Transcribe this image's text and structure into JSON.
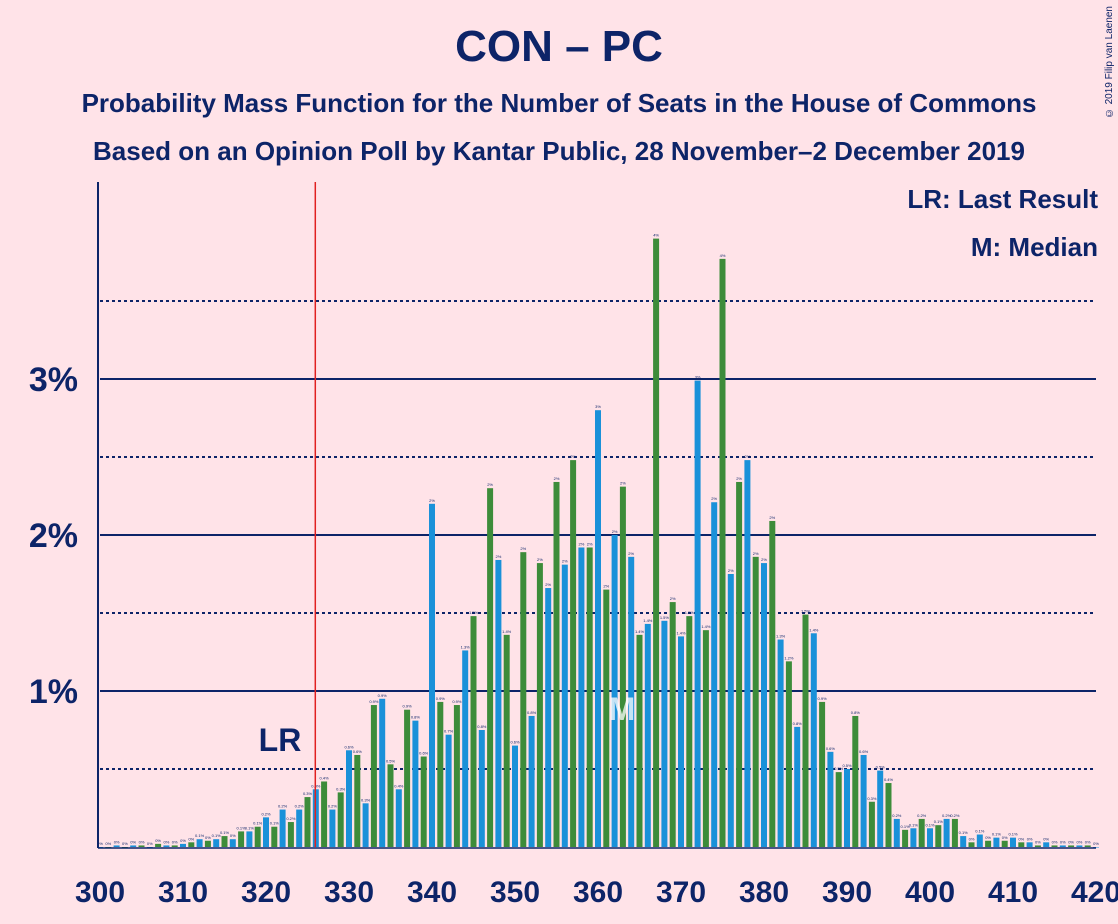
{
  "chart_data": {
    "type": "bar",
    "title": "CON – PC",
    "subtitle": "Probability Mass Function for the Number of Seats in the House of Commons",
    "subtitle2": "Based on an Opinion Poll by Kantar Public, 28 November–2 December 2019",
    "copyright": "© 2019 Filip van Laenen",
    "legend": [
      "LR: Last Result",
      "M: Median"
    ],
    "xlim": [
      300,
      420
    ],
    "ylim": [
      0,
      4.2
    ],
    "ytick_labels": [
      "1%",
      "2%",
      "3%"
    ],
    "ytick_values": [
      1,
      2,
      3
    ],
    "minor_gridlines": [
      0.5,
      1.5,
      2.5,
      3.5
    ],
    "xtick_labels": [
      "300",
      "310",
      "320",
      "330",
      "340",
      "350",
      "360",
      "370",
      "380",
      "390",
      "400",
      "410",
      "420"
    ],
    "last_result": {
      "seat": 326,
      "label": "LR"
    },
    "median": {
      "seat": 363,
      "label": "M"
    },
    "colors": {
      "even": "#1a91d9",
      "odd": "#3d8c3a",
      "line": "#e02020",
      "text": "#0d2468"
    },
    "series": [
      {
        "x": 300,
        "value": 0.0,
        "label": "0%"
      },
      {
        "x": 301,
        "value": 0.0,
        "label": "0%"
      },
      {
        "x": 302,
        "value": 0.01,
        "label": "0%"
      },
      {
        "x": 303,
        "value": 0.0,
        "label": "0%"
      },
      {
        "x": 304,
        "value": 0.01,
        "label": "0%"
      },
      {
        "x": 305,
        "value": 0.01,
        "label": "0%"
      },
      {
        "x": 306,
        "value": 0.0,
        "label": "0%"
      },
      {
        "x": 307,
        "value": 0.02,
        "label": "0%"
      },
      {
        "x": 308,
        "value": 0.01,
        "label": "0%"
      },
      {
        "x": 309,
        "value": 0.01,
        "label": "0%"
      },
      {
        "x": 310,
        "value": 0.02,
        "label": "0%"
      },
      {
        "x": 311,
        "value": 0.03,
        "label": "0%"
      },
      {
        "x": 312,
        "value": 0.05,
        "label": "0.1%"
      },
      {
        "x": 313,
        "value": 0.04,
        "label": "0%"
      },
      {
        "x": 314,
        "value": 0.05,
        "label": "0.1%"
      },
      {
        "x": 315,
        "value": 0.07,
        "label": "0.1%"
      },
      {
        "x": 316,
        "value": 0.05,
        "label": "0%"
      },
      {
        "x": 317,
        "value": 0.1,
        "label": "0.1%"
      },
      {
        "x": 318,
        "value": 0.1,
        "label": "0.1%"
      },
      {
        "x": 319,
        "value": 0.13,
        "label": "0.1%"
      },
      {
        "x": 320,
        "value": 0.19,
        "label": "0.2%"
      },
      {
        "x": 321,
        "value": 0.13,
        "label": "0.1%"
      },
      {
        "x": 322,
        "value": 0.24,
        "label": "0.2%"
      },
      {
        "x": 323,
        "value": 0.16,
        "label": "0.2%"
      },
      {
        "x": 324,
        "value": 0.24,
        "label": "0.2%"
      },
      {
        "x": 325,
        "value": 0.32,
        "label": "0.3%"
      },
      {
        "x": 326,
        "value": 0.37,
        "label": "0.4%"
      },
      {
        "x": 327,
        "value": 0.42,
        "label": "0.4%"
      },
      {
        "x": 328,
        "value": 0.24,
        "label": "0.2%"
      },
      {
        "x": 329,
        "value": 0.35,
        "label": "0.3%"
      },
      {
        "x": 330,
        "value": 0.62,
        "label": "0.6%"
      },
      {
        "x": 331,
        "value": 0.59,
        "label": "0.6%"
      },
      {
        "x": 332,
        "value": 0.28,
        "label": "0.3%"
      },
      {
        "x": 333,
        "value": 0.91,
        "label": "0.9%"
      },
      {
        "x": 334,
        "value": 0.95,
        "label": "0.9%"
      },
      {
        "x": 335,
        "value": 0.53,
        "label": "0.5%"
      },
      {
        "x": 336,
        "value": 0.37,
        "label": "0.4%"
      },
      {
        "x": 337,
        "value": 0.88,
        "label": "0.9%"
      },
      {
        "x": 338,
        "value": 0.81,
        "label": "0.8%"
      },
      {
        "x": 339,
        "value": 0.58,
        "label": "0.6%"
      },
      {
        "x": 340,
        "value": 2.2,
        "label": "2%"
      },
      {
        "x": 341,
        "value": 0.93,
        "label": "0.9%"
      },
      {
        "x": 342,
        "value": 0.72,
        "label": "0.7%"
      },
      {
        "x": 343,
        "value": 0.91,
        "label": "0.9%"
      },
      {
        "x": 344,
        "value": 1.26,
        "label": "1.3%"
      },
      {
        "x": 345,
        "value": 1.48,
        "label": "1.5%"
      },
      {
        "x": 346,
        "value": 0.75,
        "label": "0.8%"
      },
      {
        "x": 347,
        "value": 2.3,
        "label": "2%"
      },
      {
        "x": 348,
        "value": 1.84,
        "label": "2%"
      },
      {
        "x": 349,
        "value": 1.36,
        "label": "1.4%"
      },
      {
        "x": 350,
        "value": 0.65,
        "label": "0.6%"
      },
      {
        "x": 351,
        "value": 1.89,
        "label": "2%"
      },
      {
        "x": 352,
        "value": 0.84,
        "label": "0.8%"
      },
      {
        "x": 353,
        "value": 1.82,
        "label": "2%"
      },
      {
        "x": 354,
        "value": 1.66,
        "label": "2%"
      },
      {
        "x": 355,
        "value": 2.34,
        "label": "2%"
      },
      {
        "x": 356,
        "value": 1.81,
        "label": "2%"
      },
      {
        "x": 357,
        "value": 2.48,
        "label": "2%"
      },
      {
        "x": 358,
        "value": 1.92,
        "label": "2%"
      },
      {
        "x": 359,
        "value": 1.92,
        "label": "2%"
      },
      {
        "x": 360,
        "value": 2.8,
        "label": "3%"
      },
      {
        "x": 361,
        "value": 1.65,
        "label": "2%"
      },
      {
        "x": 362,
        "value": 2.0,
        "label": "2%"
      },
      {
        "x": 363,
        "value": 2.31,
        "label": "2%"
      },
      {
        "x": 364,
        "value": 1.86,
        "label": "2%"
      },
      {
        "x": 365,
        "value": 1.36,
        "label": "1.4%"
      },
      {
        "x": 366,
        "value": 1.43,
        "label": "1.4%"
      },
      {
        "x": 367,
        "value": 3.9,
        "label": "4%"
      },
      {
        "x": 368,
        "value": 1.45,
        "label": "1.5%"
      },
      {
        "x": 369,
        "value": 1.57,
        "label": "2%"
      },
      {
        "x": 370,
        "value": 1.35,
        "label": "1.4%"
      },
      {
        "x": 371,
        "value": 1.48,
        "label": "1.5%"
      },
      {
        "x": 372,
        "value": 2.99,
        "label": "3%"
      },
      {
        "x": 373,
        "value": 1.39,
        "label": "1.4%"
      },
      {
        "x": 374,
        "value": 2.21,
        "label": "2%"
      },
      {
        "x": 375,
        "value": 3.77,
        "label": "4%"
      },
      {
        "x": 376,
        "value": 1.75,
        "label": "2%"
      },
      {
        "x": 377,
        "value": 2.34,
        "label": "2%"
      },
      {
        "x": 378,
        "value": 2.48,
        "label": "2%"
      },
      {
        "x": 379,
        "value": 1.86,
        "label": "2%"
      },
      {
        "x": 380,
        "value": 1.82,
        "label": "2%"
      },
      {
        "x": 381,
        "value": 2.09,
        "label": "2%"
      },
      {
        "x": 382,
        "value": 1.33,
        "label": "1.3%"
      },
      {
        "x": 383,
        "value": 1.19,
        "label": "1.2%"
      },
      {
        "x": 384,
        "value": 0.77,
        "label": "0.8%"
      },
      {
        "x": 385,
        "value": 1.49,
        "label": "1.5%"
      },
      {
        "x": 386,
        "value": 1.37,
        "label": "1.4%"
      },
      {
        "x": 387,
        "value": 0.93,
        "label": "0.9%"
      },
      {
        "x": 388,
        "value": 0.61,
        "label": "0.6%"
      },
      {
        "x": 389,
        "value": 0.48,
        "label": "0.5%"
      },
      {
        "x": 390,
        "value": 0.5,
        "label": "0.5%"
      },
      {
        "x": 391,
        "value": 0.84,
        "label": "0.8%"
      },
      {
        "x": 392,
        "value": 0.59,
        "label": "0.6%"
      },
      {
        "x": 393,
        "value": 0.29,
        "label": "0.3%"
      },
      {
        "x": 394,
        "value": 0.49,
        "label": "0.5%"
      },
      {
        "x": 395,
        "value": 0.41,
        "label": "0.4%"
      },
      {
        "x": 396,
        "value": 0.18,
        "label": "0.2%"
      },
      {
        "x": 397,
        "value": 0.11,
        "label": "0.1%"
      },
      {
        "x": 398,
        "value": 0.12,
        "label": "0.1%"
      },
      {
        "x": 399,
        "value": 0.18,
        "label": "0.2%"
      },
      {
        "x": 400,
        "value": 0.12,
        "label": "0.1%"
      },
      {
        "x": 401,
        "value": 0.14,
        "label": "0.1%"
      },
      {
        "x": 402,
        "value": 0.18,
        "label": "0.2%"
      },
      {
        "x": 403,
        "value": 0.18,
        "label": "0.2%"
      },
      {
        "x": 404,
        "value": 0.07,
        "label": "0.1%"
      },
      {
        "x": 405,
        "value": 0.03,
        "label": "0%"
      },
      {
        "x": 406,
        "value": 0.08,
        "label": "0.1%"
      },
      {
        "x": 407,
        "value": 0.04,
        "label": "0%"
      },
      {
        "x": 408,
        "value": 0.06,
        "label": "0.1%"
      },
      {
        "x": 409,
        "value": 0.04,
        "label": "0%"
      },
      {
        "x": 410,
        "value": 0.06,
        "label": "0.1%"
      },
      {
        "x": 411,
        "value": 0.03,
        "label": "0%"
      },
      {
        "x": 412,
        "value": 0.03,
        "label": "0%"
      },
      {
        "x": 413,
        "value": 0.01,
        "label": "0%"
      },
      {
        "x": 414,
        "value": 0.03,
        "label": "0%"
      },
      {
        "x": 415,
        "value": 0.01,
        "label": "0%"
      },
      {
        "x": 416,
        "value": 0.01,
        "label": "0%"
      },
      {
        "x": 417,
        "value": 0.01,
        "label": "0%"
      },
      {
        "x": 418,
        "value": 0.01,
        "label": "0%"
      },
      {
        "x": 419,
        "value": 0.01,
        "label": "0%"
      },
      {
        "x": 420,
        "value": 0.0,
        "label": "0%"
      }
    ]
  }
}
